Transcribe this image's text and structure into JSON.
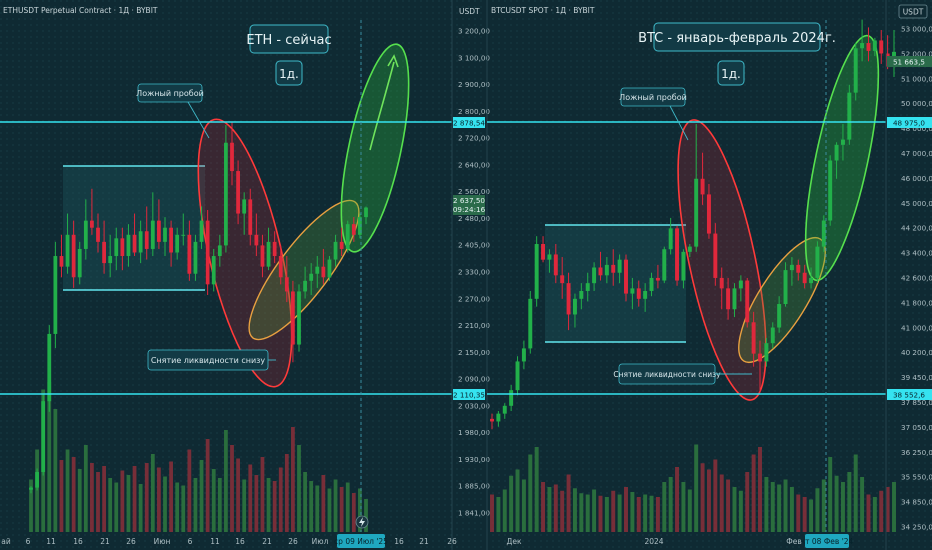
{
  "colors": {
    "background": "#0f2a33",
    "up": "#22b04a",
    "down": "#e0283c",
    "level": "#35e3f0",
    "range_box": "#62e6ee",
    "text": "#c9d6da",
    "axis_text": "#aebfc4",
    "label_bg": "#123a45"
  },
  "panels": [
    {
      "symbol_label": "ETHUSDT Perpetual Contract · 1Д · BYBIT",
      "currency": "USDT",
      "title": "ETH - сейчас",
      "timeframe": "1д.",
      "label_false_breakout": "Ложный пробой",
      "label_liquidity_sweep": "Снятие ликвидности снизу",
      "price_ticks": [
        "3 200,00",
        "3 100,00",
        "2 900,00",
        "2 800,00",
        "2 720,00",
        "2 640,00",
        "2 560,00",
        "2 480,00",
        "2 405,00",
        "2 330,00",
        "2 270,00",
        "2 210,00",
        "2 150,00",
        "2 090,00",
        "2 030,00",
        "1 980,00",
        "1 930,00",
        "1 885,00",
        "1 841,00"
      ],
      "level_top": "2 878,54",
      "level_bottom": "2 110,35",
      "last_price": "2 637,50",
      "countdown": "09:24:16",
      "date_labels": [
        "ай",
        "6",
        "11",
        "16",
        "21",
        "26",
        "Июн",
        "6",
        "11",
        "16",
        "21",
        "26",
        "Июл",
        "16",
        "21",
        "26"
      ],
      "cursor_date": "ср 09 Июл '25",
      "ohlc": [
        [
          1840,
          1850,
          1830,
          1846
        ],
        [
          1846,
          1900,
          1838,
          1890
        ],
        [
          1890,
          2110,
          1880,
          2090
        ],
        [
          2090,
          2305,
          2060,
          2280
        ],
        [
          2280,
          2540,
          2240,
          2500
        ],
        [
          2500,
          2560,
          2440,
          2470
        ],
        [
          2470,
          2620,
          2450,
          2560
        ],
        [
          2560,
          2600,
          2410,
          2440
        ],
        [
          2440,
          2540,
          2420,
          2520
        ],
        [
          2520,
          2660,
          2490,
          2600
        ],
        [
          2600,
          2690,
          2560,
          2580
        ],
        [
          2580,
          2620,
          2510,
          2540
        ],
        [
          2540,
          2600,
          2450,
          2480
        ],
        [
          2480,
          2560,
          2440,
          2500
        ],
        [
          2500,
          2580,
          2460,
          2550
        ],
        [
          2550,
          2580,
          2460,
          2500
        ],
        [
          2500,
          2590,
          2470,
          2560
        ],
        [
          2560,
          2620,
          2500,
          2510
        ],
        [
          2510,
          2600,
          2480,
          2570
        ],
        [
          2570,
          2640,
          2490,
          2520
        ],
        [
          2520,
          2680,
          2500,
          2600
        ],
        [
          2600,
          2660,
          2520,
          2540
        ],
        [
          2540,
          2610,
          2500,
          2580
        ],
        [
          2580,
          2600,
          2470,
          2510
        ],
        [
          2510,
          2580,
          2490,
          2560
        ],
        [
          2560,
          2620,
          2530,
          2560
        ],
        [
          2560,
          2600,
          2430,
          2450
        ],
        [
          2450,
          2560,
          2430,
          2540
        ],
        [
          2540,
          2640,
          2520,
          2600
        ],
        [
          2600,
          2630,
          2390,
          2420
        ],
        [
          2420,
          2520,
          2400,
          2500
        ],
        [
          2500,
          2560,
          2470,
          2530
        ],
        [
          2530,
          2870,
          2510,
          2820
        ],
        [
          2820,
          2880,
          2700,
          2740
        ],
        [
          2740,
          2770,
          2590,
          2620
        ],
        [
          2620,
          2680,
          2560,
          2660
        ],
        [
          2660,
          2690,
          2530,
          2560
        ],
        [
          2560,
          2620,
          2500,
          2530
        ],
        [
          2530,
          2560,
          2440,
          2470
        ],
        [
          2470,
          2580,
          2460,
          2540
        ],
        [
          2540,
          2570,
          2480,
          2500
        ],
        [
          2500,
          2530,
          2420,
          2440
        ],
        [
          2440,
          2500,
          2370,
          2400
        ],
        [
          2400,
          2430,
          2200,
          2250
        ],
        [
          2250,
          2420,
          2230,
          2400
        ],
        [
          2400,
          2470,
          2380,
          2430
        ],
        [
          2430,
          2480,
          2390,
          2450
        ],
        [
          2450,
          2500,
          2410,
          2470
        ],
        [
          2470,
          2520,
          2420,
          2440
        ],
        [
          2440,
          2500,
          2430,
          2490
        ],
        [
          2490,
          2560,
          2470,
          2540
        ],
        [
          2540,
          2580,
          2500,
          2520
        ],
        [
          2520,
          2600,
          2510,
          2590
        ],
        [
          2590,
          2610,
          2540,
          2560
        ],
        [
          2560,
          2620,
          2550,
          2610
        ],
        [
          2610,
          2640,
          2590,
          2637
        ]
      ],
      "volumes": [
        0.35,
        0.55,
        0.95,
        1.0,
        0.82,
        0.48,
        0.55,
        0.5,
        0.42,
        0.58,
        0.46,
        0.4,
        0.44,
        0.36,
        0.33,
        0.41,
        0.38,
        0.44,
        0.32,
        0.46,
        0.52,
        0.43,
        0.37,
        0.47,
        0.33,
        0.31,
        0.55,
        0.36,
        0.48,
        0.62,
        0.42,
        0.36,
        0.68,
        0.58,
        0.49,
        0.35,
        0.45,
        0.38,
        0.5,
        0.36,
        0.34,
        0.43,
        0.52,
        0.7,
        0.58,
        0.4,
        0.34,
        0.31,
        0.38,
        0.29,
        0.35,
        0.3,
        0.33,
        0.26,
        0.29,
        0.22
      ]
    },
    {
      "symbol_label": "BTCUSDT SPOT · 1Д · BYBIT",
      "currency": "USDT",
      "title": "BTC - январь-февраль 2024г.",
      "timeframe": "1д.",
      "label_false_breakout": "Ложный пробой",
      "label_liquidity_sweep": "Снятие ликвидности снизу",
      "price_ticks": [
        "53 000,00",
        "52 000,00",
        "51 000,00",
        "50 000,00",
        "48 000,00",
        "47 000,00",
        "46 000,00",
        "45 000,00",
        "44 200,00",
        "43 400,00",
        "42 600,00",
        "41 800,00",
        "41 000,00",
        "40 200,00",
        "39 450,00",
        "37 850,00",
        "37 050,00",
        "36 250,00",
        "35 550,00",
        "34 850,00",
        "34 250,00"
      ],
      "level_top": "48 975,0",
      "level_bottom": "38 552,6",
      "last_price": "51 663,5",
      "date_labels": [
        "Дек",
        "2024",
        "Фев"
      ],
      "cursor_date": "чт 08 Фев '24",
      "ohlc": [
        [
          37600,
          37800,
          37200,
          37500
        ],
        [
          37500,
          37900,
          37300,
          37800
        ],
        [
          37800,
          38200,
          37600,
          38100
        ],
        [
          38100,
          38900,
          37900,
          38700
        ],
        [
          38700,
          40000,
          38500,
          39800
        ],
        [
          39800,
          40600,
          39500,
          40300
        ],
        [
          40300,
          42500,
          40100,
          42200
        ],
        [
          42200,
          44600,
          41900,
          44300
        ],
        [
          44300,
          44600,
          43600,
          43700
        ],
        [
          43700,
          44100,
          43200,
          43900
        ],
        [
          43900,
          44300,
          42800,
          43100
        ],
        [
          43100,
          43800,
          42200,
          42800
        ],
        [
          42800,
          43200,
          41000,
          41600
        ],
        [
          41600,
          42400,
          41100,
          42200
        ],
        [
          42200,
          42800,
          41800,
          42500
        ],
        [
          42500,
          43200,
          42100,
          42800
        ],
        [
          42800,
          43600,
          42500,
          43400
        ],
        [
          43400,
          44000,
          42900,
          43100
        ],
        [
          43100,
          43800,
          42800,
          43500
        ],
        [
          43500,
          44100,
          42700,
          43200
        ],
        [
          43200,
          43900,
          42800,
          43700
        ],
        [
          43700,
          43900,
          42100,
          42400
        ],
        [
          42400,
          43000,
          41800,
          42600
        ],
        [
          42600,
          42900,
          41900,
          42200
        ],
        [
          42200,
          42800,
          41700,
          42500
        ],
        [
          42500,
          43200,
          42300,
          43000
        ],
        [
          43000,
          43500,
          42600,
          42900
        ],
        [
          42900,
          44200,
          42800,
          44100
        ],
        [
          44100,
          45300,
          43900,
          44900
        ],
        [
          44900,
          45000,
          42700,
          42900
        ],
        [
          42900,
          44100,
          42600,
          44000
        ],
        [
          44000,
          44300,
          43800,
          44200
        ],
        [
          44200,
          48900,
          44000,
          46800
        ],
        [
          46800,
          47800,
          45800,
          46200
        ],
        [
          46200,
          46600,
          44500,
          44700
        ],
        [
          44700,
          45100,
          42700,
          43000
        ],
        [
          43000,
          43400,
          41800,
          42600
        ],
        [
          42600,
          43000,
          41400,
          41800
        ],
        [
          41800,
          42800,
          41500,
          42600
        ],
        [
          42600,
          43100,
          42100,
          42900
        ],
        [
          42900,
          43000,
          41100,
          41300
        ],
        [
          41300,
          41700,
          39600,
          40100
        ],
        [
          40100,
          40600,
          38600,
          39800
        ],
        [
          39800,
          40700,
          39600,
          40500
        ],
        [
          40500,
          41300,
          40300,
          41100
        ],
        [
          41100,
          42300,
          40900,
          42000
        ],
        [
          42000,
          43600,
          41900,
          43300
        ],
        [
          43300,
          43800,
          42700,
          43500
        ],
        [
          43500,
          43700,
          42900,
          43200
        ],
        [
          43200,
          43500,
          42600,
          42800
        ],
        [
          42800,
          43400,
          42600,
          43000
        ],
        [
          43000,
          44400,
          42800,
          44200
        ],
        [
          44200,
          45400,
          44000,
          45200
        ],
        [
          45200,
          47700,
          45000,
          47500
        ],
        [
          47500,
          48200,
          46800,
          48100
        ],
        [
          48100,
          48900,
          47500,
          48300
        ],
        [
          48300,
          50400,
          48100,
          50100
        ],
        [
          50100,
          52000,
          49800,
          51800
        ],
        [
          51800,
          52900,
          51300,
          52000
        ],
        [
          52000,
          52600,
          51300,
          51700
        ],
        [
          51700,
          52200,
          51500,
          52100
        ],
        [
          52100,
          52500,
          51200,
          51600
        ],
        [
          51600,
          52300,
          51000,
          51100
        ],
        [
          51100,
          52500,
          50700,
          51663
        ]
      ],
      "volumes": [
        0.3,
        0.28,
        0.34,
        0.45,
        0.5,
        0.42,
        0.62,
        0.68,
        0.4,
        0.36,
        0.38,
        0.33,
        0.46,
        0.35,
        0.31,
        0.3,
        0.34,
        0.29,
        0.28,
        0.33,
        0.3,
        0.36,
        0.32,
        0.28,
        0.3,
        0.29,
        0.28,
        0.4,
        0.44,
        0.52,
        0.4,
        0.34,
        0.7,
        0.55,
        0.5,
        0.58,
        0.46,
        0.42,
        0.36,
        0.33,
        0.48,
        0.62,
        0.68,
        0.44,
        0.4,
        0.38,
        0.42,
        0.36,
        0.3,
        0.28,
        0.26,
        0.35,
        0.42,
        0.6,
        0.45,
        0.4,
        0.48,
        0.62,
        0.44,
        0.3,
        0.28,
        0.33,
        0.36,
        0.4
      ]
    }
  ]
}
